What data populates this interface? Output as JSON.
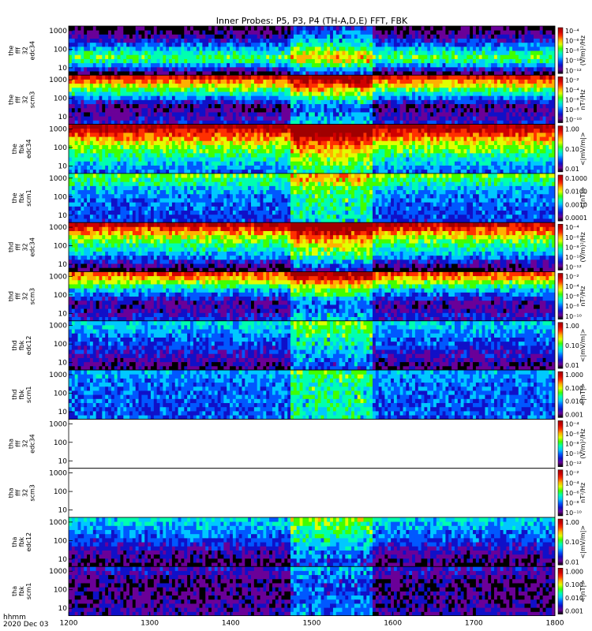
{
  "title": "Inner Probes: P5, P3, P4 (TH-A,D,E) FFT, FBK",
  "footer": {
    "time_label": "hhmm",
    "date_label": "2020 Dec 03"
  },
  "chart_data": {
    "type": "heatmap",
    "title": "Inner Probes: P5, P3, P4 (TH-A,D,E) FFT, FBK",
    "x_ticks": [
      "1200",
      "1300",
      "1400",
      "1500",
      "1600",
      "1700",
      "1800"
    ],
    "x_range": [
      1200,
      1800
    ],
    "y_scale": "log",
    "y_ticks": [
      "10",
      "100",
      "1000"
    ],
    "palette": [
      "#000000",
      "#6a0098",
      "#1010c8",
      "#0058ff",
      "#00c8ff",
      "#00ffb0",
      "#40ff00",
      "#e0ff00",
      "#ffb000",
      "#ff3000",
      "#d00000",
      "#a00000"
    ],
    "panels": [
      {
        "ylabel": [
          "the",
          "fff",
          "32",
          "edc34"
        ],
        "cbar": [
          "10⁻⁴",
          "10⁻⁶",
          "10⁻⁸",
          "10⁻¹⁰",
          "10⁻¹²"
        ],
        "clabel": "(V/m)²/Hz",
        "profile": [
          0.08,
          0.55,
          0.25,
          0.05
        ],
        "empty": false
      },
      {
        "ylabel": [
          "the",
          "fff",
          "32",
          "scm3"
        ],
        "cbar": [
          "10⁻²",
          "10⁻⁴",
          "10⁻⁶",
          "10⁻⁸",
          "10⁻¹⁰"
        ],
        "clabel": "nT²/Hz",
        "profile": [
          0.22,
          0.1,
          0.45,
          0.85
        ],
        "empty": false
      },
      {
        "ylabel": [
          "the",
          "fbk",
          "edc34"
        ],
        "cbar": [
          "1.00",
          "0.10",
          "0.01"
        ],
        "clabel": "<|mV/m|>",
        "profile": [
          0.3,
          0.45,
          0.65,
          0.95
        ],
        "empty": false
      },
      {
        "ylabel": [
          "the",
          "fbk",
          "scm1"
        ],
        "cbar": [
          "0.1000",
          "0.0100",
          "0.0010",
          "0.0001"
        ],
        "clabel": "<|nT|>",
        "profile": [
          0.25,
          0.28,
          0.35,
          0.55
        ],
        "empty": false
      },
      {
        "ylabel": [
          "thd",
          "fff",
          "32",
          "edc34"
        ],
        "cbar": [
          "10⁻⁴",
          "10⁻⁶",
          "10⁻⁸",
          "10⁻¹⁰",
          "10⁻¹²"
        ],
        "clabel": "(V/m)²/Hz",
        "profile": [
          0.05,
          0.35,
          0.55,
          0.9
        ],
        "empty": false
      },
      {
        "ylabel": [
          "thd",
          "fff",
          "32",
          "scm3"
        ],
        "cbar": [
          "10⁻²",
          "10⁻⁴",
          "10⁻⁶",
          "10⁻⁸",
          "10⁻¹⁰"
        ],
        "clabel": "nT²/Hz",
        "profile": [
          0.22,
          0.12,
          0.4,
          0.8
        ],
        "empty": false
      },
      {
        "ylabel": [
          "thd",
          "fbk",
          "edc12"
        ],
        "cbar": [
          "1.00",
          "0.10",
          "0.01"
        ],
        "clabel": "<|mV/m|>",
        "profile": [
          0.1,
          0.2,
          0.3,
          0.4
        ],
        "empty": false
      },
      {
        "ylabel": [
          "thd",
          "fbk",
          "scm1"
        ],
        "cbar": [
          "1.000",
          "0.100",
          "0.010",
          "0.001"
        ],
        "clabel": "<|nT|>",
        "profile": [
          0.28,
          0.28,
          0.3,
          0.35
        ],
        "empty": false
      },
      {
        "ylabel": [
          "tha",
          "fff",
          "32",
          "edc34"
        ],
        "cbar": [
          "10⁻⁴",
          "10⁻⁶",
          "10⁻⁸",
          "10⁻¹⁰",
          "10⁻¹²"
        ],
        "clabel": "(V/m)²/Hz",
        "profile": [
          0,
          0,
          0,
          0
        ],
        "empty": true
      },
      {
        "ylabel": [
          "tha",
          "fff",
          "32",
          "scm3"
        ],
        "cbar": [
          "10⁻²",
          "10⁻⁴",
          "10⁻⁶",
          "10⁻⁸",
          "10⁻¹⁰"
        ],
        "clabel": "nT²/Hz",
        "profile": [
          0,
          0,
          0,
          0
        ],
        "empty": true
      },
      {
        "ylabel": [
          "tha",
          "fbk",
          "edc12"
        ],
        "cbar": [
          "1.00",
          "0.10",
          "0.01"
        ],
        "clabel": "<|mV/m|>",
        "profile": [
          0.08,
          0.18,
          0.3,
          0.4
        ],
        "empty": false
      },
      {
        "ylabel": [
          "tha",
          "fbk",
          "scm1"
        ],
        "cbar": [
          "1.000",
          "0.100",
          "0.010",
          "0.001"
        ],
        "clabel": "<|nT|>",
        "profile": [
          0.15,
          0.12,
          0.1,
          0.2
        ],
        "empty": false
      }
    ]
  }
}
